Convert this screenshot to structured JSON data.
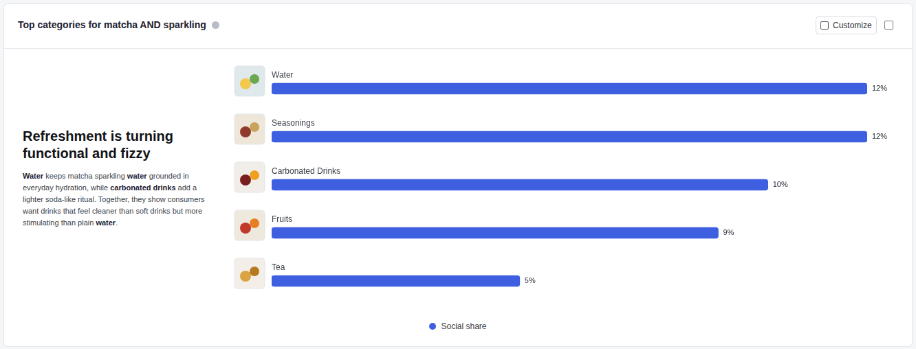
{
  "header": {
    "title": "Top categories for matcha AND sparkling",
    "button": "Customize"
  },
  "insight": {
    "heading": "Refreshment is turning functional and fizzy",
    "body": [
      {
        "text": "Water",
        "bold": true
      },
      {
        "text": " keeps matcha sparkling ",
        "bold": false
      },
      {
        "text": "water",
        "bold": true
      },
      {
        "text": " grounded in everyday hydration, while ",
        "bold": false
      },
      {
        "text": "carbonated drinks",
        "bold": true
      },
      {
        "text": " add a lighter soda-like ritual. Together, they show consumers want drinks that feel cleaner than soft drinks but more stimulating than plain ",
        "bold": false
      },
      {
        "text": "water",
        "bold": true
      },
      {
        "text": ".",
        "bold": false
      }
    ]
  },
  "chart_data": {
    "type": "bar",
    "orientation": "horizontal",
    "categories": [
      "Water",
      "Seasonings",
      "Carbonated Drinks",
      "Fruits",
      "Tea"
    ],
    "series": [
      {
        "name": "Social share",
        "color": "#3d5fe0",
        "values": [
          12,
          12,
          10,
          9,
          5
        ],
        "value_labels": [
          "12%",
          "12%",
          "10%",
          "9%",
          "5%"
        ]
      }
    ],
    "xlim": [
      0,
      12
    ],
    "data_labels": true,
    "tick_labels": false,
    "grid": false,
    "legend": "bottom"
  }
}
